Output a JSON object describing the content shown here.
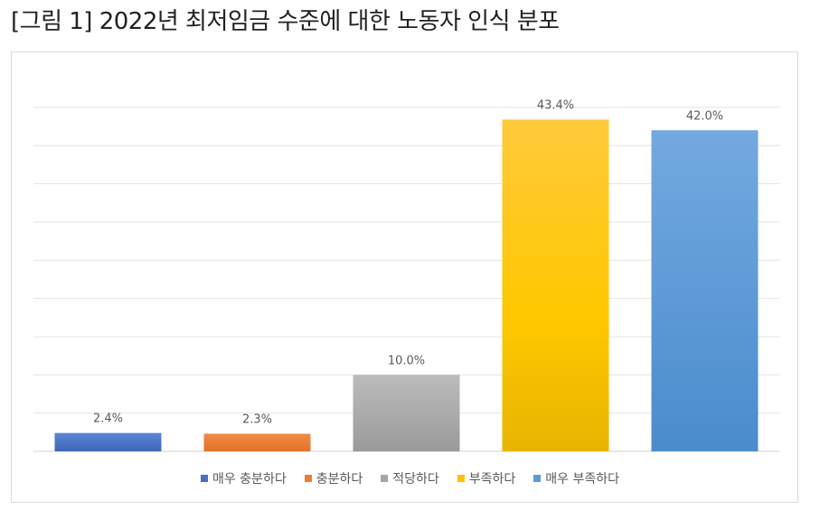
{
  "figure": {
    "title": "[그림 1] 2022년 최저임금 수준에 대한 노동자 인식 분포"
  },
  "chart_data": {
    "type": "bar",
    "title": "",
    "xlabel": "",
    "ylabel": "",
    "ylim": [
      0,
      45
    ],
    "grid": true,
    "legend_position": "bottom",
    "categories": [
      "매우 충분하다",
      "충분하다",
      "적당하다",
      "부족하다",
      "매우 부족하다"
    ],
    "values": [
      2.4,
      2.3,
      10.0,
      43.4,
      42.0
    ],
    "data_labels": [
      "2.4%",
      "2.3%",
      "10.0%",
      "43.4%",
      "42.0%"
    ],
    "colors": [
      "#4472c4",
      "#ed7d31",
      "#a5a5a5",
      "#ffc000",
      "#5b9bd5"
    ]
  }
}
